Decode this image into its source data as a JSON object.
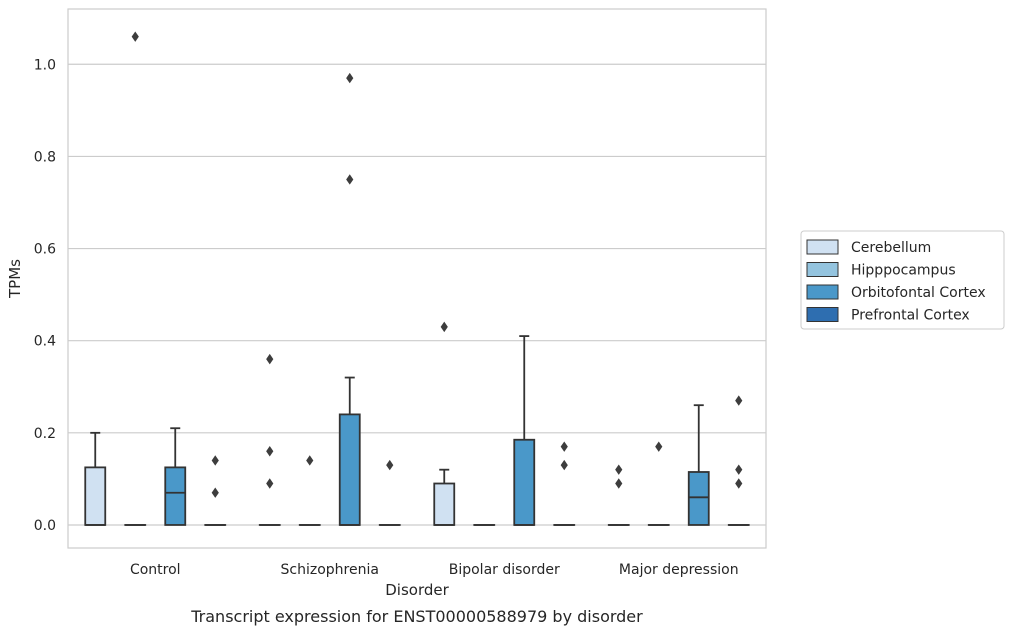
{
  "chart_data": {
    "type": "box",
    "title": "",
    "xlabel": "Disorder",
    "ylabel": "TPMs",
    "caption": "Transcript expression for ENST00000588979 by disorder",
    "categories": [
      "Control",
      "Schizophrenia",
      "Bipolar disorder",
      "Major depression"
    ],
    "ylim": [
      -0.05,
      1.12
    ],
    "yticks": [
      0.0,
      0.2,
      0.4,
      0.6,
      0.8,
      1.0
    ],
    "ytick_labels": [
      "0.0",
      "0.2",
      "0.4",
      "0.6",
      "0.8",
      "1.0"
    ],
    "grid": true,
    "legend_position": "right",
    "series": [
      {
        "name": "Cerebellum",
        "color": "#d0e1f2",
        "boxes": [
          {
            "q1": 0,
            "median": 0,
            "q3": 0.125,
            "whisker_low": 0,
            "whisker_high": 0.2,
            "outliers": []
          },
          {
            "q1": 0,
            "median": 0,
            "q3": 0,
            "whisker_low": 0,
            "whisker_high": 0,
            "outliers": [
              0.09,
              0.16,
              0.36
            ]
          },
          {
            "q1": 0,
            "median": 0,
            "q3": 0.09,
            "whisker_low": 0,
            "whisker_high": 0.12,
            "outliers": [
              0.43
            ]
          },
          {
            "q1": 0,
            "median": 0,
            "q3": 0,
            "whisker_low": 0,
            "whisker_high": 0,
            "outliers": [
              0.09,
              0.12
            ]
          }
        ]
      },
      {
        "name": "Hipppocampus",
        "color": "#94c4df",
        "boxes": [
          {
            "q1": 0,
            "median": 0,
            "q3": 0,
            "whisker_low": 0,
            "whisker_high": 0,
            "outliers": [
              1.06
            ]
          },
          {
            "q1": 0,
            "median": 0,
            "q3": 0,
            "whisker_low": 0,
            "whisker_high": 0,
            "outliers": [
              0.14
            ]
          },
          {
            "q1": 0,
            "median": 0,
            "q3": 0,
            "whisker_low": 0,
            "whisker_high": 0,
            "outliers": []
          },
          {
            "q1": 0,
            "median": 0,
            "q3": 0,
            "whisker_low": 0,
            "whisker_high": 0,
            "outliers": [
              0.17
            ]
          }
        ]
      },
      {
        "name": "Orbitofontal Cortex",
        "color": "#4a98c9",
        "boxes": [
          {
            "q1": 0,
            "median": 0.07,
            "q3": 0.125,
            "whisker_low": 0,
            "whisker_high": 0.21,
            "outliers": []
          },
          {
            "q1": 0,
            "median": 0,
            "q3": 0.24,
            "whisker_low": 0,
            "whisker_high": 0.32,
            "outliers": [
              0.75,
              0.97
            ]
          },
          {
            "q1": 0,
            "median": 0,
            "q3": 0.185,
            "whisker_low": 0,
            "whisker_high": 0.41,
            "outliers": []
          },
          {
            "q1": 0,
            "median": 0.06,
            "q3": 0.115,
            "whisker_low": 0,
            "whisker_high": 0.26,
            "outliers": []
          }
        ]
      },
      {
        "name": "Prefrontal Cortex",
        "color": "#2e6eb0",
        "boxes": [
          {
            "q1": 0,
            "median": 0,
            "q3": 0,
            "whisker_low": 0,
            "whisker_high": 0,
            "outliers": [
              0.07,
              0.14
            ]
          },
          {
            "q1": 0,
            "median": 0,
            "q3": 0,
            "whisker_low": 0,
            "whisker_high": 0,
            "outliers": [
              0.13
            ]
          },
          {
            "q1": 0,
            "median": 0,
            "q3": 0,
            "whisker_low": 0,
            "whisker_high": 0,
            "outliers": [
              0.13,
              0.17
            ]
          },
          {
            "q1": 0,
            "median": 0,
            "q3": 0,
            "whisker_low": 0,
            "whisker_high": 0,
            "outliers": [
              0.09,
              0.12,
              0.27
            ]
          }
        ]
      }
    ]
  }
}
